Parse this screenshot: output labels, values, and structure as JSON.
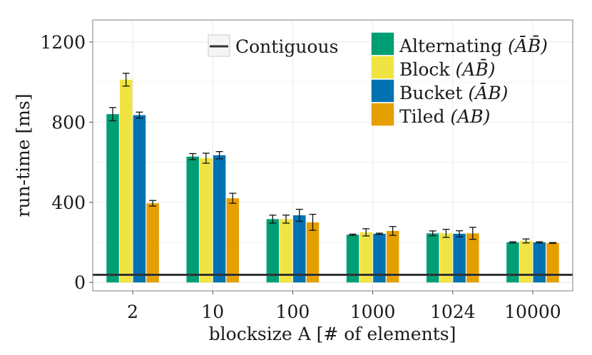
{
  "chart_data": {
    "type": "bar",
    "xlabel": "blocksize A [# of elements]",
    "ylabel": "run-time [ms]",
    "ylim": [
      -42,
      1310
    ],
    "yticks": [
      0,
      400,
      800,
      1200
    ],
    "grid": true,
    "categories": [
      "2",
      "10",
      "100",
      "1000",
      "1024",
      "10000"
    ],
    "series": [
      {
        "name": "Alternating",
        "legend_math": "(ĀB̄)",
        "color": "#009E73",
        "values": [
          840,
          628,
          316,
          238,
          245,
          200
        ],
        "errors": [
          33,
          15,
          20,
          3,
          12,
          3
        ]
      },
      {
        "name": "Block",
        "legend_math": "(AB̄)",
        "color": "#F0E442",
        "values": [
          1012,
          620,
          316,
          250,
          245,
          207
        ],
        "errors": [
          32,
          25,
          20,
          18,
          20,
          10
        ]
      },
      {
        "name": "Bucket",
        "legend_math": "(ĀB)",
        "color": "#0072B2",
        "values": [
          835,
          635,
          335,
          243,
          243,
          200
        ],
        "errors": [
          15,
          18,
          30,
          3,
          15,
          3
        ]
      },
      {
        "name": "Tiled",
        "legend_math": "(AB)",
        "color": "#E69F00",
        "values": [
          395,
          420,
          300,
          257,
          245,
          197
        ],
        "errors": [
          14,
          25,
          40,
          22,
          30,
          2
        ]
      }
    ],
    "reference_line": {
      "name": "Contiguous",
      "value": 38,
      "color": "#333333"
    },
    "legend_position": "top-right"
  }
}
